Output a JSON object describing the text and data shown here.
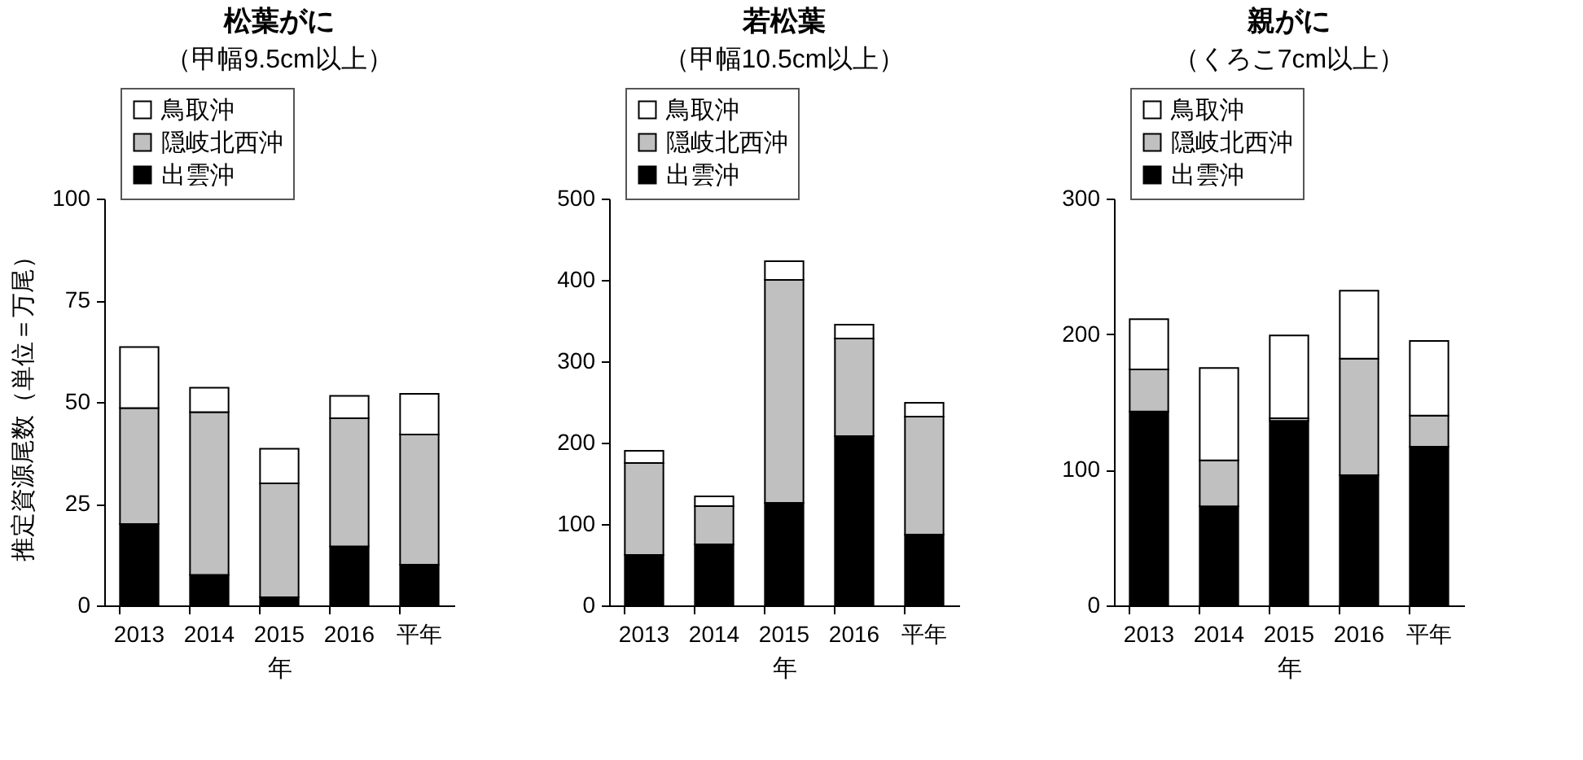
{
  "chart_data": [
    {
      "type": "bar",
      "title": "松葉がに",
      "subtitle": "（甲幅9.5cm以上）",
      "xlabel": "年",
      "ylabel": "推定資源尾数（単位＝万尾）",
      "categories": [
        "2013",
        "2014",
        "2015",
        "2016",
        "平年"
      ],
      "stacked": true,
      "legend": "top",
      "grid": false,
      "ylim": [
        0,
        100
      ],
      "yticks": [
        0,
        25,
        50,
        75,
        100
      ],
      "series": [
        {
          "name": "出雲沖",
          "color": "#000000",
          "values": [
            20,
            7.5,
            2,
            14.5,
            10
          ]
        },
        {
          "name": "隠岐北西沖",
          "color": "#c0c0c0",
          "values": [
            28.5,
            40,
            28,
            31.5,
            32
          ]
        },
        {
          "name": "鳥取沖",
          "color": "#ffffff",
          "values": [
            15,
            6,
            8.5,
            5.5,
            10
          ]
        }
      ]
    },
    {
      "type": "bar",
      "title": "若松葉",
      "subtitle": "（甲幅10.5cm以上）",
      "xlabel": "年",
      "categories": [
        "2013",
        "2014",
        "2015",
        "2016",
        "平年"
      ],
      "stacked": true,
      "legend": "top",
      "grid": false,
      "ylim": [
        0,
        500
      ],
      "yticks": [
        0,
        100,
        200,
        300,
        400,
        500
      ],
      "series": [
        {
          "name": "出雲沖",
          "color": "#000000",
          "values": [
            62,
            75,
            126,
            208,
            87
          ]
        },
        {
          "name": "隠岐北西沖",
          "color": "#c0c0c0",
          "values": [
            113,
            47,
            274,
            120,
            145
          ]
        },
        {
          "name": "鳥取沖",
          "color": "#ffffff",
          "values": [
            15,
            12,
            23,
            17,
            17
          ]
        }
      ]
    },
    {
      "type": "bar",
      "title": "親がに",
      "subtitle": "（くろこ7cm以上）",
      "xlabel": "年",
      "categories": [
        "2013",
        "2014",
        "2015",
        "2016",
        "平年"
      ],
      "stacked": true,
      "legend": "top",
      "grid": false,
      "ylim": [
        0,
        300
      ],
      "yticks": [
        0,
        100,
        200,
        300
      ],
      "series": [
        {
          "name": "出雲沖",
          "color": "#000000",
          "values": [
            143,
            73,
            136,
            96,
            117
          ]
        },
        {
          "name": "隠岐北西沖",
          "color": "#c0c0c0",
          "values": [
            31,
            34,
            2,
            86,
            23
          ]
        },
        {
          "name": "鳥取沖",
          "color": "#ffffff",
          "values": [
            37,
            68,
            61,
            50,
            55
          ]
        }
      ]
    }
  ]
}
